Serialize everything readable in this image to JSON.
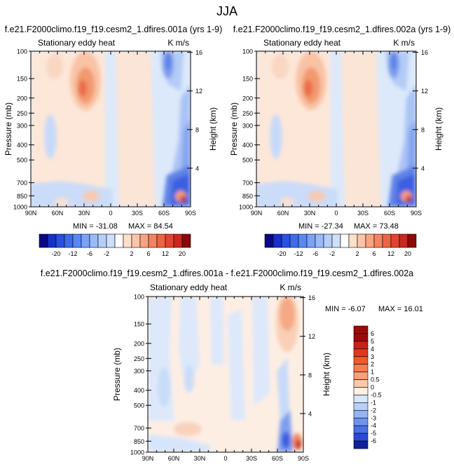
{
  "page_title": "JJA",
  "chart_data": [
    {
      "type": "heatmap",
      "title": "f.e21.F2000climo.f19_f19.cesm2_1.dfires.001a (yrs 1-9)",
      "subtitle_left": "Stationary eddy heat",
      "units": "K m/s",
      "ylabel": "Pressure (mb)",
      "ylabel_right": "Height (km)",
      "xlabel": "",
      "x_ticks": [
        "90N",
        "60N",
        "30N",
        "0",
        "30S",
        "60S",
        "90S"
      ],
      "y_ticks": [
        "100",
        "150",
        "200",
        "250",
        "300",
        "400",
        "500",
        "700",
        "850",
        "1000"
      ],
      "y_ticks_right": [
        "16",
        "12",
        "8",
        "4"
      ],
      "min_label": "MIN = -31.08",
      "max_label": "MAX = 84.54",
      "colorbar_labels": [
        "-20",
        "-12",
        "-6",
        "-2",
        "2",
        "6",
        "12",
        "20"
      ],
      "colorbar_levels": [
        -25,
        -20,
        -16,
        -12,
        -8,
        -6,
        -4,
        -2,
        -1,
        1,
        2,
        4,
        6,
        8,
        12,
        16,
        20,
        25
      ],
      "colorbar_colors": [
        "#0a0a86",
        "#1630c8",
        "#2a50e0",
        "#3e6cec",
        "#5a88f2",
        "#7aa2f6",
        "#98baf6",
        "#b4cef8",
        "#cce0fc",
        "#ffffff",
        "#fde0cc",
        "#fbc4a8",
        "#f8a482",
        "#f4845e",
        "#ec6444",
        "#e04430",
        "#c8281e",
        "#8a0a0a"
      ]
    },
    {
      "type": "heatmap",
      "title": "f.e21.F2000climo.f19_f19.cesm2_1.dfires.002a (yrs 1-9)",
      "subtitle_left": "Stationary eddy heat",
      "units": "K m/s",
      "ylabel": "Pressure (mb)",
      "ylabel_right": "Height (km)",
      "x_ticks": [
        "90N",
        "60N",
        "30N",
        "0",
        "30S",
        "60S",
        "90S"
      ],
      "y_ticks": [
        "100",
        "150",
        "200",
        "250",
        "300",
        "400",
        "500",
        "700",
        "850",
        "1000"
      ],
      "y_ticks_right": [
        "16",
        "12",
        "8",
        "4"
      ],
      "min_label": "MIN = -27.34",
      "max_label": "MAX = 73.48",
      "colorbar_labels": [
        "-20",
        "-12",
        "-6",
        "-2",
        "2",
        "6",
        "12",
        "20"
      ]
    },
    {
      "type": "heatmap",
      "title": "f.e21.F2000climo.f19_f19.cesm2_1.dfires.001a - f.e21.F2000climo.f19_f19.cesm2_1.dfires.002a",
      "subtitle_left": "Stationary eddy heat",
      "units": "K m/s",
      "ylabel": "Pressure (mb)",
      "ylabel_right": "Height (km)",
      "x_ticks": [
        "90N",
        "60N",
        "30N",
        "0",
        "30S",
        "60S",
        "90S"
      ],
      "y_ticks": [
        "100",
        "150",
        "200",
        "250",
        "300",
        "400",
        "500",
        "700",
        "850",
        "1000"
      ],
      "y_ticks_right": [
        "16",
        "12",
        "8",
        "4"
      ],
      "min_label": "MIN = -6.07",
      "max_label": "MAX = 16.01",
      "colorbar_labels": [
        "6",
        "5",
        "4",
        "3",
        "2",
        "1",
        "0.5",
        "0",
        "-0.5",
        "-1",
        "-2",
        "-3",
        "-4",
        "-5",
        "-6"
      ],
      "colorbar_colors": [
        "#9a0a0a",
        "#c8201a",
        "#e0381e",
        "#f05a2a",
        "#f47e52",
        "#f8a07a",
        "#fbc8aa",
        "#fff0e4",
        "#d6e6fc",
        "#b8d0f8",
        "#96b4f4",
        "#7094ee",
        "#4a70e4",
        "#2a4ad6",
        "#10209a"
      ]
    }
  ]
}
